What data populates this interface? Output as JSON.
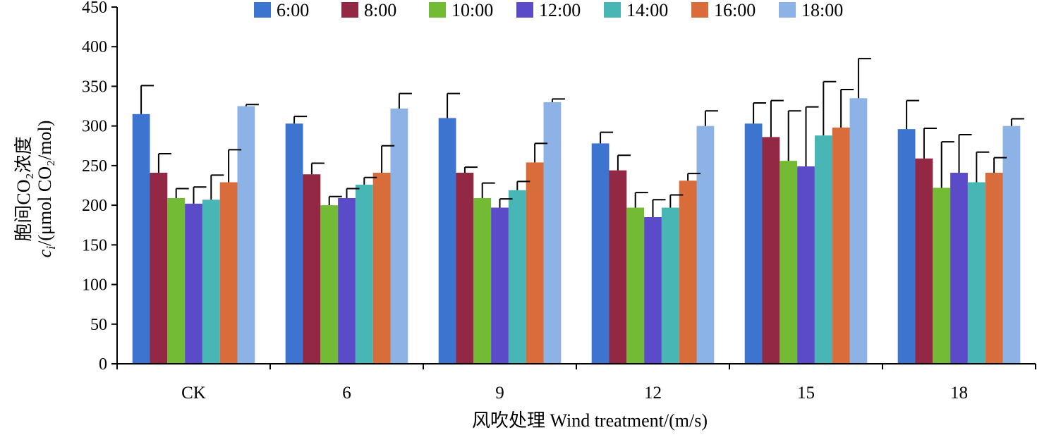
{
  "chart_data": {
    "type": "bar",
    "title": "",
    "xlabel": "风吹处理 Wind treatment/(m/s)",
    "ylabel": {
      "line1": "胞间CO₂浓度",
      "line2_var": "c",
      "line2_sub": "i",
      "line2_rest": "/(μmol CO₂/mol)"
    },
    "ylim": [
      0,
      450
    ],
    "yticks": [
      0,
      50,
      100,
      150,
      200,
      250,
      300,
      350,
      400,
      450
    ],
    "categories": [
      "CK",
      "6",
      "9",
      "12",
      "15",
      "18"
    ],
    "legend_position": "top",
    "grid": false,
    "series": [
      {
        "name": "6:00",
        "color": "#3C74CF",
        "values": [
          315,
          303,
          310,
          278,
          303,
          296
        ],
        "errors": [
          36,
          9,
          31,
          14,
          26,
          36
        ]
      },
      {
        "name": "8:00",
        "color": "#922843",
        "values": [
          241,
          239,
          241,
          244,
          286,
          259
        ],
        "errors": [
          24,
          14,
          7,
          19,
          46,
          38
        ]
      },
      {
        "name": "10:00",
        "color": "#74BB35",
        "values": [
          209,
          200,
          209,
          197,
          256,
          222
        ],
        "errors": [
          12,
          11,
          19,
          19,
          63,
          58
        ]
      },
      {
        "name": "12:00",
        "color": "#5C4BC8",
        "values": [
          202,
          209,
          197,
          185,
          249,
          241
        ],
        "errors": [
          21,
          12,
          11,
          22,
          75,
          48
        ]
      },
      {
        "name": "14:00",
        "color": "#47B6B4",
        "values": [
          207,
          226,
          219,
          197,
          288,
          229
        ],
        "errors": [
          31,
          9,
          11,
          16,
          68,
          38
        ]
      },
      {
        "name": "16:00",
        "color": "#D86D3B",
        "values": [
          229,
          241,
          254,
          231,
          298,
          241
        ],
        "errors": [
          41,
          34,
          24,
          9,
          48,
          19
        ]
      },
      {
        "name": "18:00",
        "color": "#8CB2E6",
        "values": [
          325,
          322,
          330,
          300,
          335,
          300
        ],
        "errors": [
          2,
          19,
          4,
          19,
          50,
          9
        ]
      }
    ]
  }
}
